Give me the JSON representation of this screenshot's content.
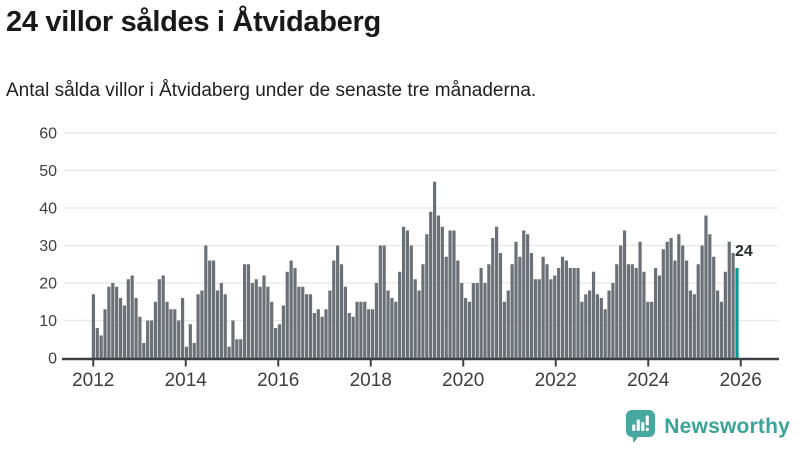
{
  "header": {
    "title": "24 villor såldes i Åtvidaberg",
    "subtitle": "Antal sålda villor i Åtvidaberg under de senaste tre månaderna."
  },
  "chart_data": {
    "type": "bar",
    "title": "24 villor såldes i Åtvidaberg",
    "xlabel": "",
    "ylabel": "",
    "ylim": [
      0,
      60
    ],
    "grid": true,
    "legend": false,
    "y_ticks": [
      "0",
      "10",
      "20",
      "30",
      "40",
      "50",
      "60"
    ],
    "x_tick_labels": [
      "2012",
      "2014",
      "2016",
      "2018",
      "2020",
      "2022",
      "2024",
      "2026"
    ],
    "x_start": "2012-01",
    "x_end": "2025-11",
    "values": [
      17,
      8,
      6,
      13,
      19,
      20,
      19,
      16,
      14,
      21,
      22,
      16,
      11,
      4,
      10,
      10,
      15,
      21,
      22,
      15,
      13,
      13,
      10,
      16,
      3,
      9,
      4,
      17,
      18,
      30,
      26,
      26,
      18,
      20,
      17,
      3,
      10,
      5,
      5,
      25,
      25,
      20,
      21,
      19,
      22,
      19,
      15,
      8,
      9,
      14,
      23,
      26,
      24,
      19,
      19,
      17,
      17,
      12,
      13,
      11,
      13,
      18,
      26,
      30,
      25,
      19,
      12,
      11,
      15,
      15,
      15,
      13,
      13,
      20,
      30,
      30,
      18,
      16,
      15,
      23,
      35,
      34,
      30,
      21,
      18,
      25,
      33,
      39,
      47,
      38,
      35,
      27,
      34,
      34,
      26,
      20,
      16,
      15,
      20,
      20,
      24,
      20,
      25,
      32,
      35,
      28,
      15,
      18,
      25,
      31,
      27,
      34,
      33,
      28,
      21,
      21,
      27,
      25,
      21,
      22,
      24,
      27,
      26,
      24,
      24,
      24,
      15,
      17,
      18,
      23,
      17,
      16,
      13,
      18,
      20,
      25,
      30,
      34,
      25,
      25,
      24,
      31,
      23,
      15,
      15,
      24,
      22,
      29,
      31,
      32,
      26,
      33,
      30,
      26,
      18,
      17,
      25,
      30,
      38,
      33,
      27,
      18,
      15,
      23,
      31,
      28,
      24
    ],
    "highlight_last": true,
    "last_value_label": "24",
    "bar_color": "#6b7076",
    "highlight_color": "#009a92",
    "grid_color": "#e8e8e8",
    "axis_color": "#3d4043",
    "axis_text_color": "#3c3e40",
    "annotation_color": "#2a2c2e"
  },
  "branding": {
    "name": "Newsworthy",
    "color": "#3aa39a",
    "icon_color": "#46a89f",
    "icon": "newsworthy-speech-bubble-barchart-icon"
  }
}
